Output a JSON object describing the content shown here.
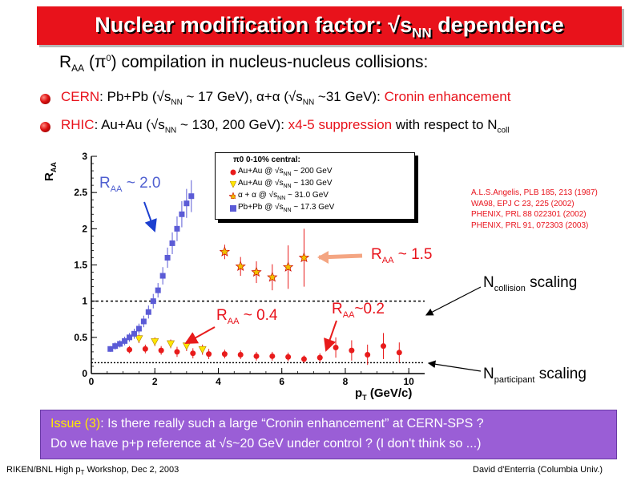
{
  "title": {
    "text": "Nuclear modification factor: √s",
    "sub": "NN",
    "tail": " dependence"
  },
  "subtitle": {
    "pre": "R",
    "sub": "AA",
    "mid1": " (π",
    "sup": "0",
    "post": ") compilation in nucleus-nucleus collisions:"
  },
  "bullets": [
    {
      "label": "CERN",
      "text": ": Pb+Pb (√s",
      "sub1": "NN",
      "text2": " ~ 17 GeV), α+α (√s",
      "sub2": "NN",
      "text3": " ~31 GeV): ",
      "highlight": "Cronin enhancement"
    },
    {
      "label": "RHIC",
      "text": ": Au+Au (√s",
      "sub1": "NN",
      "text2": " ~ 130, 200 GeV): ",
      "highlight": "x4-5 suppression",
      "text3": " with respect to N",
      "sub2": "coll"
    }
  ],
  "chart_data": {
    "type": "scatter",
    "title": "",
    "xlabel": "pT (GeV/c)",
    "ylabel": "RAA",
    "xlim": [
      0,
      10.5
    ],
    "ylim": [
      0,
      3
    ],
    "x_ticks": [
      "0",
      "2",
      "4",
      "6",
      "8",
      "10"
    ],
    "y_ticks": [
      "0",
      "0.5",
      "1",
      "1.5",
      "2",
      "2.5",
      "3"
    ],
    "reference_lines": [
      {
        "name": "Ncollision scaling",
        "y": 1.0
      },
      {
        "name": "Nparticipant scaling",
        "y": 0.15
      }
    ],
    "legend_title": "π0 0-10% central:",
    "series": [
      {
        "name": "Au+Au @ √sNN ~ 200 GeV",
        "marker": "circle",
        "color": "#e81b1b",
        "x": [
          1.2,
          1.7,
          2.2,
          2.7,
          3.2,
          3.7,
          4.2,
          4.7,
          5.2,
          5.7,
          6.2,
          6.7,
          7.2,
          7.7,
          8.2,
          8.7,
          9.2,
          9.7
        ],
        "y": [
          0.33,
          0.34,
          0.32,
          0.3,
          0.28,
          0.27,
          0.27,
          0.26,
          0.24,
          0.24,
          0.23,
          0.2,
          0.22,
          0.36,
          0.32,
          0.26,
          0.38,
          0.29
        ],
        "err": [
          0.05,
          0.06,
          0.06,
          0.07,
          0.07,
          0.07,
          0.06,
          0.06,
          0.06,
          0.06,
          0.06,
          0.05,
          0.06,
          0.14,
          0.14,
          0.14,
          0.18,
          0.14
        ]
      },
      {
        "name": "Au+Au @ √sNN ~ 130 GeV",
        "marker": "triangle-down",
        "color": "#ffe600",
        "x": [
          1.5,
          2.0,
          2.5,
          3.0,
          3.5
        ],
        "y": [
          0.48,
          0.44,
          0.41,
          0.38,
          0.33
        ],
        "err": [
          0.06,
          0.06,
          0.06,
          0.07,
          0.07
        ]
      },
      {
        "name": "α + α @ √sNN ~ 31.0 GeV",
        "marker": "star",
        "color": "#f0c000",
        "x": [
          4.2,
          4.7,
          5.2,
          5.7,
          6.2,
          6.7
        ],
        "y": [
          1.68,
          1.48,
          1.4,
          1.33,
          1.47,
          1.6
        ],
        "err": [
          0.1,
          0.13,
          0.15,
          0.18,
          0.3,
          0.4
        ]
      },
      {
        "name": "Pb+Pb @ √sNN ~ 17.3 GeV",
        "marker": "square",
        "color": "#5b5bd6",
        "x": [
          0.6,
          0.75,
          0.9,
          1.05,
          1.2,
          1.35,
          1.5,
          1.65,
          1.8,
          1.95,
          2.1,
          2.25,
          2.4,
          2.55,
          2.7,
          2.85,
          3.0,
          3.15
        ],
        "y": [
          0.34,
          0.38,
          0.41,
          0.45,
          0.5,
          0.55,
          0.62,
          0.72,
          0.85,
          1.0,
          1.15,
          1.35,
          1.6,
          1.8,
          2.0,
          2.2,
          2.35,
          2.45
        ],
        "err": [
          0.04,
          0.05,
          0.05,
          0.06,
          0.06,
          0.07,
          0.07,
          0.08,
          0.09,
          0.1,
          0.1,
          0.12,
          0.14,
          0.15,
          0.17,
          0.18,
          0.2,
          0.22
        ]
      }
    ],
    "annotations": [
      {
        "label": "RAA ~ 2.0",
        "color": "#4f5fd0"
      },
      {
        "label": "RAA ~ 1.5",
        "color": "#e81b1b"
      },
      {
        "label": "RAA ~ 0.4",
        "color": "#e81b1b"
      },
      {
        "label": "RAA ~0.2",
        "color": "#e81b1b"
      }
    ]
  },
  "legend": {
    "title": "π0 0-10% central:",
    "rows": [
      {
        "pre": "Au+Au @ √s",
        "sub": "NN",
        "post": " ~ 200 GeV"
      },
      {
        "pre": "Au+Au @ √s",
        "sub": "NN",
        "post": " ~ 130 GeV"
      },
      {
        "pre": "α + α  @ √s",
        "sub": "NN",
        "post": " ~ 31.0 GeV"
      },
      {
        "pre": "Pb+Pb @ √s",
        "sub": "NN",
        "post": " ~ 17.3 GeV"
      }
    ]
  },
  "references": [
    "A.L.S.Angelis, PLB 185, 213 (1987)",
    "WA98, EPJ C 23, 225 (2002)",
    "PHENIX, PRL 88 022301 (2002)",
    "PHENIX, PRL 91, 072303  (2003)"
  ],
  "ann_labels": {
    "raa20": {
      "pre": "R",
      "sub": "AA",
      "post": " ~  2.0"
    },
    "raa15": {
      "pre": "R",
      "sub": "AA",
      "post": " ~  1.5"
    },
    "raa04": {
      "pre": "R",
      "sub": "AA",
      "post": " ~  0.4"
    },
    "raa02": {
      "pre": "R",
      "sub": "AA",
      "post": "~0.2"
    },
    "ncoll": {
      "pre": "N",
      "sub": "collision",
      "post": " scaling"
    },
    "npart": {
      "pre": "N",
      "sub": "participant",
      "post": " scaling"
    }
  },
  "axis": {
    "ylabel_pre": "R",
    "ylabel_sub": "AA",
    "xlabel_pre": "p",
    "xlabel_sub": "T",
    "xlabel_post": " (GeV/c)"
  },
  "issue": {
    "label": "Issue (3)",
    "line1": ": Is there really such a large “Cronin enhancement” at CERN-SPS ?",
    "line2": "Do we have p+p reference at √s~20 GeV under control ? (I don't think so ...)"
  },
  "footer": {
    "left_pre": "RIKEN/BNL High p",
    "left_sub": "T",
    "left_post": " Workshop, Dec 2, 2003",
    "right": "David d'Enterria (Columbia Univ.)"
  }
}
